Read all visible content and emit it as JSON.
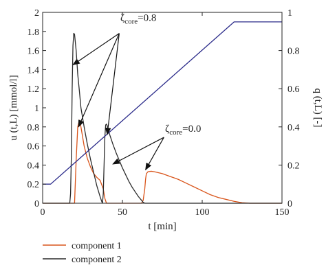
{
  "chart_data": {
    "type": "line",
    "xlabel": "t [min]",
    "ylabel_left": "u (t,L) [mmol/l]",
    "ylabel_right": "q (t,L) [-]",
    "xlim": [
      0,
      150
    ],
    "ylim_left": [
      0,
      2
    ],
    "ylim_right": [
      0,
      1
    ],
    "xticks": [
      0,
      50,
      100,
      150
    ],
    "yticks_left": [
      0,
      0.2,
      0.4,
      0.6,
      0.8,
      1,
      1.2,
      1.4,
      1.6,
      1.8,
      2
    ],
    "yticks_left_labels": [
      "0",
      "0.2",
      "0.4",
      "0.6",
      "0.8",
      "1",
      "1.2",
      "1.4",
      "1.6",
      "1.8",
      "2"
    ],
    "yticks_right": [
      0,
      0.2,
      0.4,
      0.6,
      0.8,
      1
    ],
    "yticks_right_labels": [
      "0",
      "0.2",
      "0.4",
      "0.6",
      "0.8",
      "1"
    ],
    "grid": false,
    "legend_position": "below-left",
    "series": [
      {
        "name": "component 1",
        "axis": "left",
        "color": "#d9541a",
        "x": [
          0,
          20,
          21,
          22,
          23,
          24,
          26,
          28,
          30,
          32,
          34,
          36,
          38,
          39,
          40,
          60,
          62,
          63,
          64,
          64.5,
          65,
          66,
          68,
          70,
          75,
          80,
          85,
          90,
          95,
          100,
          105,
          110,
          115,
          120,
          125,
          130,
          150
        ],
        "y": [
          0,
          0,
          0.45,
          0.8,
          0.87,
          0.8,
          0.6,
          0.47,
          0.38,
          0.31,
          0.27,
          0.24,
          0.15,
          0.05,
          0,
          0,
          0,
          0.03,
          0.15,
          0.25,
          0.31,
          0.33,
          0.335,
          0.33,
          0.31,
          0.28,
          0.25,
          0.21,
          0.17,
          0.13,
          0.09,
          0.06,
          0.04,
          0.02,
          0.005,
          0,
          0
        ]
      },
      {
        "name": "component 2",
        "axis": "left",
        "color": "#2b2b2b",
        "x": [
          0,
          17,
          17.5,
          18,
          18.5,
          19,
          19.5,
          20,
          21,
          22,
          23,
          24,
          26,
          28,
          30,
          32,
          34,
          36,
          37,
          37.5,
          38,
          38.5,
          39,
          39.5,
          40,
          40.5,
          41,
          42,
          44,
          46,
          48,
          50,
          52,
          54,
          56,
          58,
          60,
          62,
          63,
          64,
          150
        ],
        "y": [
          0,
          0,
          0.1,
          0.5,
          1.2,
          1.65,
          1.78,
          1.77,
          1.6,
          1.35,
          1.18,
          1.0,
          0.8,
          0.62,
          0.46,
          0.32,
          0.18,
          0.07,
          0.02,
          0,
          0.1,
          0.4,
          0.7,
          0.82,
          0.83,
          0.81,
          0.78,
          0.72,
          0.62,
          0.53,
          0.45,
          0.37,
          0.3,
          0.23,
          0.17,
          0.12,
          0.07,
          0.03,
          0.01,
          0,
          0
        ]
      },
      {
        "axis": "right",
        "color": "#2b2b8a",
        "x": [
          0,
          5,
          120,
          150
        ],
        "y": [
          0.1,
          0.1,
          0.95,
          0.95
        ]
      }
    ],
    "annotations": [
      {
        "symbol": "ζ",
        "subscript": "core",
        "value_text": "=0.8",
        "text_x": 60,
        "text_y": 1.91,
        "arrows_to": [
          [
            19,
            1.45
          ],
          [
            22.5,
            0.8
          ],
          [
            40.5,
            0.72
          ]
        ],
        "arrow_from": [
          48,
          1.78
        ]
      },
      {
        "symbol": "ζ",
        "subscript": "core",
        "value_text": "=0.0",
        "text_x": 88,
        "text_y": 0.75,
        "arrows_to": [
          [
            44,
            0.41
          ],
          [
            64.5,
            0.35
          ]
        ],
        "arrow_from": [
          76,
          0.69
        ]
      }
    ],
    "legend": [
      {
        "label": "component 1",
        "color": "#d9541a"
      },
      {
        "label": "component 2",
        "color": "#2b2b2b"
      }
    ]
  }
}
